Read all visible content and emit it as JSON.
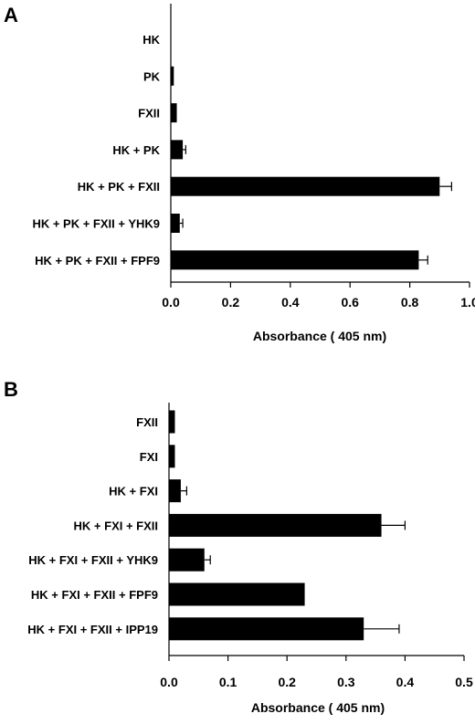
{
  "chart_data": [
    {
      "panel": "A",
      "type": "bar",
      "orientation": "horizontal",
      "categories": [
        "HK",
        "PK",
        "FXII",
        "HK + PK",
        "HK + PK + FXII",
        "HK + PK + FXII + YHK9",
        "HK + PK + FXII + FPF9"
      ],
      "values": [
        0.0,
        0.01,
        0.02,
        0.04,
        0.9,
        0.03,
        0.83
      ],
      "errors": [
        0.0,
        0.0,
        0.0,
        0.01,
        0.04,
        0.01,
        0.03
      ],
      "xlabel": "Absorbance ( 405 nm)",
      "xlim": [
        0,
        1.0
      ],
      "xticks": [
        "0.0",
        "0.2",
        "0.4",
        "0.6",
        "0.8",
        "1.0"
      ],
      "grid": false,
      "bar_color": "#000000"
    },
    {
      "panel": "B",
      "type": "bar",
      "orientation": "horizontal",
      "categories": [
        "FXII",
        "FXI",
        "HK + FXI",
        "HK + FXI + FXII",
        "HK + FXI + FXII + YHK9",
        "HK + FXI + FXII + FPF9",
        "HK + FXI + FXII + IPP19"
      ],
      "values": [
        0.01,
        0.01,
        0.02,
        0.36,
        0.06,
        0.23,
        0.33
      ],
      "errors": [
        0.0,
        0.0,
        0.01,
        0.04,
        0.01,
        0.0,
        0.06
      ],
      "xlabel": "Absorbance ( 405 nm)",
      "xlim": [
        0,
        0.5
      ],
      "xticks": [
        "0.0",
        "0.1",
        "0.2",
        "0.3",
        "0.4",
        "0.5"
      ],
      "grid": false,
      "bar_color": "#000000"
    }
  ]
}
